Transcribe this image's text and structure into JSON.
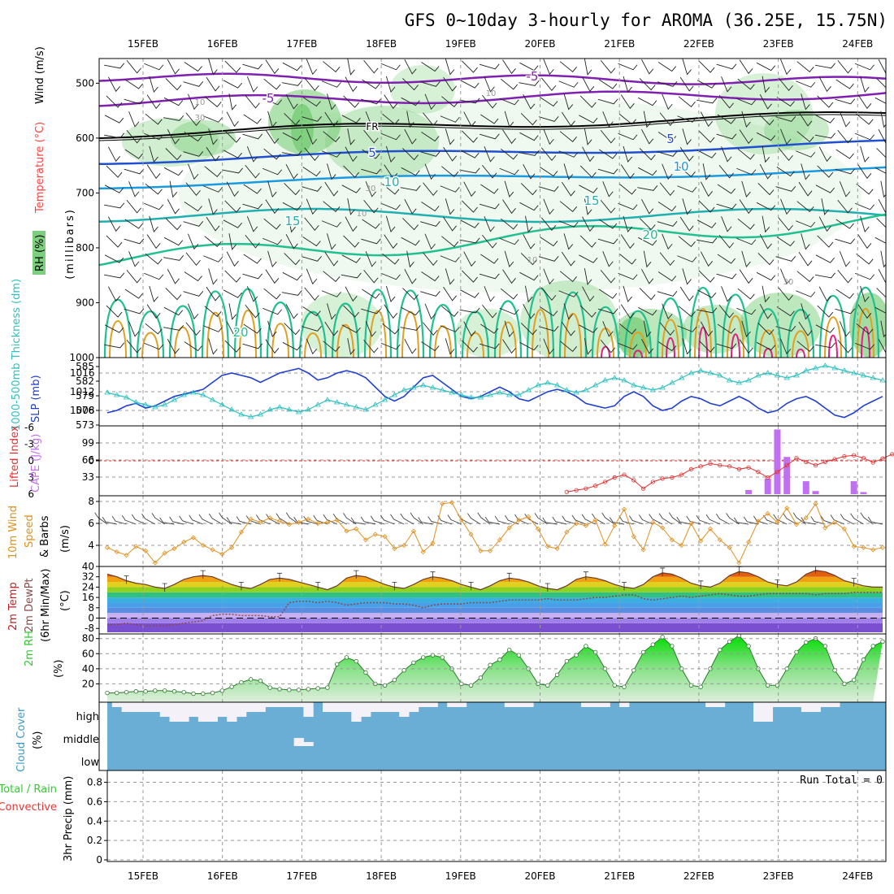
{
  "title": "GFS 0~10day 3-hourly for AROMA (36.25E, 15.75N)",
  "colors": {
    "rh": "#7ccf7c",
    "temp": "#ff4040",
    "wind": "#000000",
    "slp": "#2040d0",
    "thickness": "#30c0c0",
    "cape": "#c070f0",
    "lifted": "#e03030",
    "wind10": "#e09020",
    "dewpt": "#8b4a4a",
    "rh2m": "#2ecc2e",
    "cloud_bg": "#6aaed6",
    "cloud": "#f4f2f8",
    "precip_rain": "#33cc33",
    "precip_conv": "#ee3333"
  },
  "chart_data": [
    {
      "type": "heatmap",
      "panel": "upper-air",
      "dates": [
        "15FEB",
        "16FEB",
        "17FEB",
        "18FEB",
        "19FEB",
        "20FEB",
        "21FEB",
        "22FEB",
        "23FEB",
        "24FEB"
      ],
      "ylabel_parts": [
        "RH (%)",
        "Temperature (°C)",
        "Wind (m/s)"
      ],
      "yunit": "(millibars)",
      "yticks": [
        500,
        600,
        700,
        800,
        900,
        1000
      ],
      "ylim": [
        1000,
        455
      ],
      "isotherm_labels": [
        "-5",
        "-5",
        "FR",
        "5",
        "5",
        "10",
        "10",
        "15",
        "15",
        "20",
        "20"
      ],
      "rh_labels": [
        "10",
        "30",
        "10",
        "30",
        "10",
        "10",
        "30"
      ]
    },
    {
      "type": "line",
      "panel": "slp-thickness",
      "ylabel_left": "1000-500mb Thickness (dm)",
      "ylabel_right": "SLP (mb)",
      "yticks_left": [
        573,
        576,
        579,
        582,
        585
      ],
      "yticks_right": [
        1008,
        1012,
        1016
      ],
      "series": [
        {
          "name": "SLP (mb)",
          "values": [
            1007.5,
            1008,
            1009,
            1009.5,
            1008.5,
            1009,
            1010,
            1011,
            1011.5,
            1012,
            1012.5,
            1014,
            1015.5,
            1016,
            1015.5,
            1015,
            1014,
            1015,
            1016,
            1016.5,
            1017,
            1016,
            1014.5,
            1015,
            1016,
            1016.5,
            1016,
            1015,
            1013,
            1011,
            1010,
            1011,
            1013,
            1015,
            1015.5,
            1014,
            1012.5,
            1011,
            1010.5,
            1011,
            1012,
            1013,
            1012,
            1010.5,
            1010,
            1011,
            1012,
            1012.5,
            1012,
            1011,
            1009.5,
            1009,
            1008.5,
            1009,
            1011,
            1012,
            1011,
            1009,
            1008,
            1008.5,
            1010,
            1011,
            1010.5,
            1009.5,
            1009,
            1010,
            1011,
            1010,
            1008.5,
            1007.5,
            1008,
            1009.5,
            1010.5,
            1011,
            1010,
            1008.5,
            1007,
            1006.5,
            1007.5,
            1009,
            1010,
            1011
          ]
        },
        {
          "name": "1000-500mb Thickness (dm)",
          "values": [
            579.5,
            579,
            578.5,
            577.5,
            577,
            576.5,
            577,
            578,
            579,
            579.5,
            579,
            578,
            577,
            576,
            575,
            574.5,
            575,
            576,
            576.5,
            576,
            575.5,
            576,
            577,
            578,
            577.5,
            577,
            576.5,
            576,
            577,
            578,
            579,
            580,
            580.5,
            581,
            580.5,
            580,
            579.5,
            579,
            578.5,
            578.5,
            579,
            579.5,
            579,
            579,
            580,
            581,
            581.5,
            581,
            580,
            579.5,
            580,
            581,
            582,
            582.5,
            582,
            581,
            580.5,
            580,
            580.5,
            581.5,
            582.5,
            583.5,
            584,
            583.5,
            583,
            582,
            581.5,
            582,
            583,
            583.5,
            583,
            582.5,
            583,
            584,
            584.5,
            585,
            584.5,
            584,
            583.5,
            583,
            582.5,
            582
          ]
        }
      ]
    },
    {
      "type": "bar",
      "panel": "cape-li",
      "ylabel_left": "Lifted Index",
      "ylabel_right": "CAPE (J/kg)",
      "yticks_left": [
        -6,
        -3,
        0,
        3,
        6
      ],
      "yticks_right": [
        33,
        66,
        99
      ],
      "series": [
        {
          "name": "CAPE (J/kg)",
          "x_index": [
            67,
            69,
            70,
            71,
            73,
            74,
            78,
            79
          ],
          "values": [
            8,
            30,
            125,
            72,
            25,
            6,
            25,
            4
          ]
        },
        {
          "name": "Lifted Index",
          "start_index": 48,
          "values": [
            5.6,
            5.3,
            5,
            4.5,
            3.8,
            3,
            2.5,
            3.5,
            5,
            3.8,
            3.2,
            3,
            2.5,
            1.5,
            1,
            0.5,
            0.8,
            1,
            1.5,
            1.2,
            2,
            3,
            2,
            0.8,
            -0.5,
            0.2,
            0.8,
            0.2,
            -0.3,
            -0.8,
            -1,
            -0.5,
            0.3,
            -0.4,
            -1.2,
            -0.8,
            0,
            0.5,
            0.4,
            0,
            -0.5,
            -1.5
          ]
        }
      ]
    },
    {
      "type": "line",
      "panel": "wind10",
      "ylabel_parts": [
        "10m Wind",
        "Speed",
        "& Barbs"
      ],
      "yunit": "(m/s)",
      "yticks": [
        4,
        6,
        8
      ],
      "series": [
        {
          "name": "Speed",
          "values": [
            3.8,
            3.4,
            3.1,
            3.9,
            3.5,
            2.4,
            3.3,
            3.7,
            4.3,
            4.7,
            4.0,
            3.6,
            3.2,
            3.8,
            5.2,
            6.4,
            6.1,
            6.5,
            6.2,
            5.9,
            6.1,
            6.4,
            6.0,
            6.1,
            6.3,
            5.3,
            5.5,
            4.5,
            5.0,
            4.8,
            3.7,
            4.0,
            5.3,
            3.4,
            4.2,
            7.8,
            7.9,
            6.3,
            5.0,
            3.5,
            3.5,
            4.5,
            5.6,
            6.3,
            6.6,
            5.5,
            3.9,
            3.7,
            5.2,
            6.0,
            5.8,
            6.3,
            4.1,
            5.8,
            7.3,
            4.8,
            3.6,
            6.1,
            5.6,
            4.5,
            4.0,
            6.0,
            4.4,
            5.5,
            4.5,
            3.8,
            2.4,
            4.3,
            6.2,
            6.9,
            6.1,
            7.4,
            5.9,
            6.5,
            7.8,
            5.6,
            6.1,
            5.5,
            3.9,
            3.8,
            3.6,
            3.8
          ]
        }
      ]
    },
    {
      "type": "area",
      "panel": "temp2m",
      "ylabel_parts": [
        "2m Temp",
        "2m DewPt",
        "(6hr Min/Max)"
      ],
      "yunit": "(°C)",
      "yticks": [
        -8,
        0,
        8,
        16,
        24,
        32,
        40
      ],
      "series": [
        {
          "name": "2m Temp",
          "values": [
            34,
            32,
            29,
            27,
            26,
            24,
            23,
            26,
            30,
            32,
            33,
            32,
            29,
            26,
            24,
            23,
            26,
            30,
            31,
            30,
            28,
            26,
            24,
            22,
            25,
            31,
            33,
            32,
            29,
            26,
            24,
            23,
            26,
            30,
            32,
            31,
            29,
            26,
            24,
            22,
            25,
            29,
            31,
            30,
            28,
            25,
            23,
            22,
            25,
            30,
            32,
            31,
            29,
            26,
            24,
            23,
            26,
            32,
            35,
            34,
            31,
            27,
            25,
            24,
            27,
            33,
            36,
            35,
            32,
            28,
            26,
            25,
            28,
            34,
            37,
            36,
            33,
            29,
            27,
            25,
            24,
            24
          ]
        },
        {
          "name": "2m DewPt",
          "values": [
            -5,
            -5,
            -4,
            -5,
            -6,
            -6,
            -6,
            -5,
            -4,
            -3,
            -2,
            2,
            3,
            3,
            2,
            2,
            2,
            1,
            1,
            12,
            13,
            13,
            12,
            13,
            12,
            10,
            11,
            12,
            12,
            12,
            11,
            11,
            10,
            8,
            10,
            11,
            11,
            11,
            12,
            12,
            12,
            13,
            14,
            14,
            14,
            14,
            15,
            14,
            14,
            14,
            15,
            16,
            16,
            17,
            18,
            18,
            15,
            14,
            15,
            16,
            17,
            16,
            17,
            18,
            19,
            18,
            17,
            17,
            18,
            19,
            19,
            19,
            19,
            19,
            18,
            19,
            19,
            19,
            20,
            20,
            20,
            20
          ]
        }
      ]
    },
    {
      "type": "area",
      "panel": "rh2m",
      "ylabel": "2m RH",
      "yunit": "(%)",
      "yticks": [
        20,
        40,
        60,
        80
      ],
      "series": [
        {
          "name": "2m RH",
          "values": [
            8,
            8,
            9,
            10,
            10,
            11,
            11,
            10,
            9,
            7,
            7,
            8,
            11,
            16,
            22,
            26,
            24,
            15,
            13,
            12,
            12,
            13,
            14,
            15,
            46,
            55,
            50,
            35,
            20,
            18,
            25,
            38,
            48,
            55,
            58,
            55,
            40,
            20,
            18,
            28,
            45,
            52,
            65,
            58,
            40,
            20,
            18,
            32,
            50,
            58,
            70,
            62,
            40,
            18,
            16,
            38,
            62,
            72,
            82,
            70,
            40,
            18,
            16,
            40,
            65,
            76,
            84,
            70,
            40,
            18,
            18,
            40,
            62,
            75,
            80,
            70,
            38,
            20,
            25,
            52,
            70,
            76
          ]
        }
      ]
    },
    {
      "type": "heatmap",
      "panel": "cloud",
      "ylabel": "Cloud Cover",
      "yunit": "(%)",
      "levels": [
        "high",
        "middle",
        "low"
      ],
      "high": [
        0,
        1,
        2,
        2,
        2,
        2,
        3,
        4,
        4,
        3,
        4,
        4,
        3,
        4,
        3,
        2,
        2,
        1,
        1,
        1,
        1,
        3,
        0,
        2,
        2,
        2,
        4,
        3,
        2,
        2,
        2,
        3,
        2,
        1,
        1,
        0,
        1,
        1,
        0,
        0,
        0,
        0,
        1,
        1,
        1,
        0,
        0,
        0,
        0,
        0,
        1,
        1,
        1,
        0,
        1,
        0,
        0,
        0,
        0,
        0,
        0,
        0,
        0,
        1,
        1,
        0,
        0,
        0,
        4,
        4,
        1,
        1,
        1,
        2,
        2,
        1,
        1,
        0,
        0,
        0,
        0,
        0
      ],
      "middle_index": [
        20,
        21
      ],
      "middle": [
        2,
        1
      ]
    },
    {
      "type": "bar",
      "panel": "precip",
      "ylabel_parts": [
        "3hr Precip (mm)"
      ],
      "legend": [
        "Total / Rain",
        "Convective"
      ],
      "annotation": "Run Total = 0",
      "yticks": [
        0,
        0.2,
        0.4,
        0.6,
        0.8
      ],
      "values": []
    }
  ]
}
